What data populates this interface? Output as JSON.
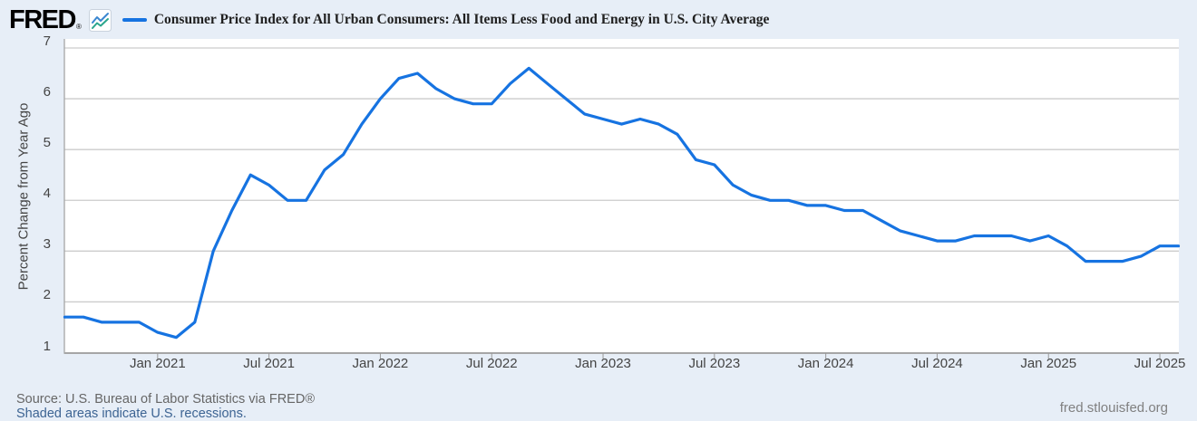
{
  "header": {
    "logo_text": "FRED",
    "logo_reg": "®",
    "title": "Consumer Price Index for All Urban Consumers: All Items Less Food and Energy in U.S. City Average"
  },
  "footer": {
    "source": "Source: U.S. Bureau of Labor Statistics via FRED®",
    "recession_note": "Shaded areas indicate U.S. recessions.",
    "site": "fred.stlouisfed.org"
  },
  "colors": {
    "line": "#1673e1",
    "background": "#e7eef7",
    "plot_background": "#ffffff",
    "gridline": "#cccccc",
    "axis": "#a6a6a6",
    "tick": "#999999",
    "axis_text": "#444444",
    "title_text": "#202020",
    "source_text": "#666666",
    "link_text": "#3d6493",
    "site_text": "#808080",
    "icon_blue": "#3b87d0",
    "icon_teal": "#2aa58c"
  },
  "chart_data": {
    "type": "line",
    "title": "Consumer Price Index for All Urban Consumers: All Items Less Food and Energy in U.S. City Average",
    "ylabel": "Percent Change from Year Ago",
    "xlabel": "",
    "grid": "horizontal",
    "legend_position": "top",
    "ylim": [
      1,
      7
    ],
    "y_ticks": [
      1,
      2,
      3,
      4,
      5,
      6,
      7
    ],
    "x_tick_labels": [
      "Jan 2021",
      "Jul 2021",
      "Jan 2022",
      "Jul 2022",
      "Jan 2023",
      "Jul 2023",
      "Jan 2024",
      "Jul 2024",
      "Jan 2025",
      "Jul 2025"
    ],
    "x_tick_month_index": [
      5,
      11,
      17,
      23,
      29,
      35,
      41,
      47,
      53,
      59
    ],
    "x_start": "2020-08",
    "x_end": "2025-08",
    "series": [
      {
        "name": "Consumer Price Index for All Urban Consumers: All Items Less Food and Energy in U.S. City Average",
        "color": "#1673e1",
        "dates": [
          "2020-08",
          "2020-09",
          "2020-10",
          "2020-11",
          "2020-12",
          "2021-01",
          "2021-02",
          "2021-03",
          "2021-04",
          "2021-05",
          "2021-06",
          "2021-07",
          "2021-08",
          "2021-09",
          "2021-10",
          "2021-11",
          "2021-12",
          "2022-01",
          "2022-02",
          "2022-03",
          "2022-04",
          "2022-05",
          "2022-06",
          "2022-07",
          "2022-08",
          "2022-09",
          "2022-10",
          "2022-11",
          "2022-12",
          "2023-01",
          "2023-02",
          "2023-03",
          "2023-04",
          "2023-05",
          "2023-06",
          "2023-07",
          "2023-08",
          "2023-09",
          "2023-10",
          "2023-11",
          "2023-12",
          "2024-01",
          "2024-02",
          "2024-03",
          "2024-04",
          "2024-05",
          "2024-06",
          "2024-07",
          "2024-08",
          "2024-09",
          "2024-10",
          "2024-11",
          "2024-12",
          "2025-01",
          "2025-02",
          "2025-03",
          "2025-04",
          "2025-05",
          "2025-06",
          "2025-07",
          "2025-08"
        ],
        "values": [
          1.7,
          1.7,
          1.6,
          1.6,
          1.6,
          1.4,
          1.3,
          1.6,
          3.0,
          3.8,
          4.5,
          4.3,
          4.0,
          4.0,
          4.6,
          4.9,
          5.5,
          6.0,
          6.4,
          6.5,
          6.2,
          6.0,
          5.9,
          5.9,
          6.3,
          6.6,
          6.3,
          6.0,
          5.7,
          5.6,
          5.5,
          5.6,
          5.5,
          5.3,
          4.8,
          4.7,
          4.3,
          4.1,
          4.0,
          4.0,
          3.9,
          3.9,
          3.8,
          3.8,
          3.6,
          3.4,
          3.3,
          3.2,
          3.2,
          3.3,
          3.3,
          3.3,
          3.2,
          3.3,
          3.1,
          2.8,
          2.8,
          2.8,
          2.9,
          3.1,
          3.1
        ]
      }
    ]
  }
}
